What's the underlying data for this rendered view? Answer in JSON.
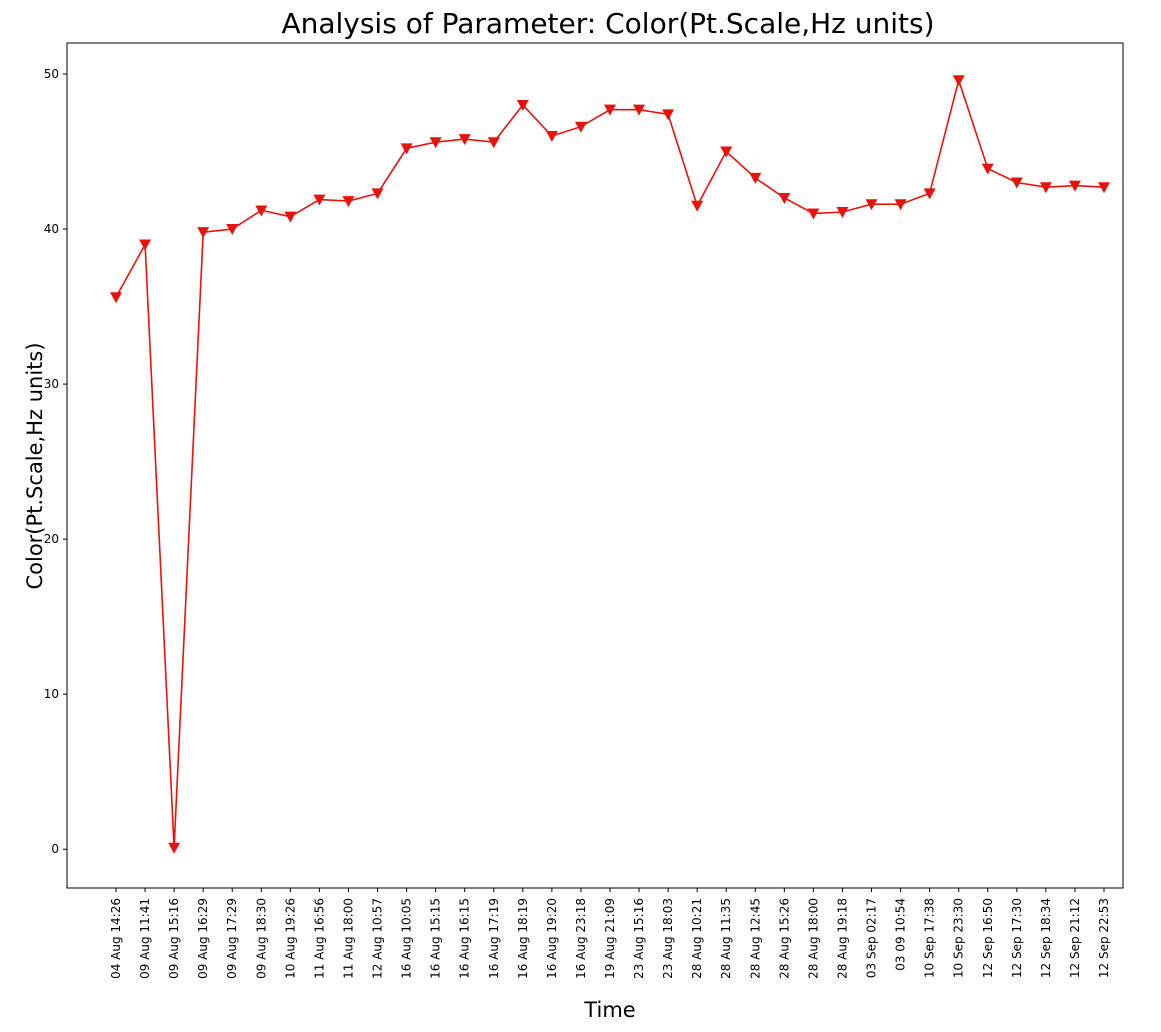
{
  "chart_data": {
    "type": "line",
    "title": "Analysis of Parameter: Color(Pt.Scale,Hz units)",
    "xlabel": "Time",
    "ylabel": "Color(Pt.Scale,Hz units)",
    "ylim": [
      -2.5,
      52
    ],
    "yticks": [
      0,
      10,
      20,
      30,
      40,
      50
    ],
    "grid": false,
    "legend": "none",
    "line_color": "#e8120c",
    "marker": "triangle-down",
    "categories": [
      "04 Aug 14:26",
      "09 Aug 11:41",
      "09 Aug 15:16",
      "09 Aug 16:29",
      "09 Aug 17:29",
      "09 Aug 18:30",
      "10 Aug 19:26",
      "11 Aug 16:56",
      "11 Aug 18:00",
      "12 Aug 10:57",
      "16 Aug 10:05",
      "16 Aug 15:15",
      "16 Aug 16:15",
      "16 Aug 17:19",
      "16 Aug 18:19",
      "16 Aug 19:20",
      "16 Aug 23:18",
      "19 Aug 21:09",
      "23 Aug 15:16",
      "23 Aug 18:03",
      "28 Aug 10:21",
      "28 Aug 11:35",
      "28 Aug 12:45",
      "28 Aug 15:26",
      "28 Aug 18:00",
      "28 Aug 19:18",
      "03 Sep 02:17",
      "03 09 10:54",
      "10 Sep 17:38",
      "10 Sep 23:30",
      "12 Sep 16:50",
      "12 Sep 17:30",
      "12 Sep 18:34",
      "12 Sep 21:12",
      "12 Sep 22:53"
    ],
    "series": [
      {
        "values": [
          35.6,
          39.0,
          0.1,
          39.8,
          40.0,
          41.2,
          40.8,
          41.9,
          41.8,
          42.3,
          45.2,
          45.6,
          45.8,
          45.6,
          48.0,
          46.0,
          46.6,
          47.7,
          47.7,
          47.4,
          41.5,
          45.0,
          43.3,
          42.0,
          41.0,
          41.1,
          41.6,
          41.6,
          42.3,
          49.6,
          43.9,
          43.0,
          42.7,
          42.8,
          42.7
        ]
      }
    ]
  }
}
